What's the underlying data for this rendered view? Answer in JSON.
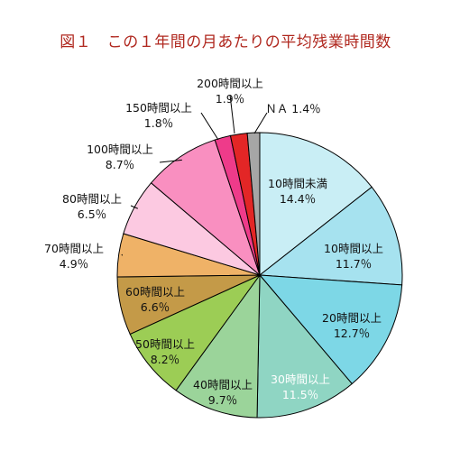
{
  "chart_data": {
    "type": "pie",
    "title": "図１　この１年間の月あたりの平均残業時間数",
    "slices": [
      {
        "label": "10時間未満",
        "value": 14.4,
        "value_text": "14.4％",
        "color": "#c9eef5",
        "text_color": "#111111"
      },
      {
        "label": "10時間以上",
        "value": 11.7,
        "value_text": "11.7％",
        "color": "#a6e2ef",
        "text_color": "#111111"
      },
      {
        "label": "20時間以上",
        "value": 12.7,
        "value_text": "12.7％",
        "color": "#7dd7e6",
        "text_color": "#111111"
      },
      {
        "label": "30時間以上",
        "value": 11.5,
        "value_text": "11.5％",
        "color": "#8fd5c3",
        "text_color": "#ffffff"
      },
      {
        "label": "40時間以上",
        "value": 9.7,
        "value_text": "9.7％",
        "color": "#9bd49a",
        "text_color": "#111111"
      },
      {
        "label": "50時間以上",
        "value": 8.2,
        "value_text": "8.2％",
        "color": "#9ccd55",
        "text_color": "#111111"
      },
      {
        "label": "60時間以上",
        "value": 6.6,
        "value_text": "6.6％",
        "color": "#c49a48",
        "text_color": "#111111"
      },
      {
        "label": "70時間以上",
        "value": 4.9,
        "value_text": "4.9％",
        "color": "#efb267",
        "text_color": "#111111"
      },
      {
        "label": "80時間以上",
        "value": 6.5,
        "value_text": "6.5％",
        "color": "#fcc9e1",
        "text_color": "#111111"
      },
      {
        "label": "100時間以上",
        "value": 8.7,
        "value_text": "8.7％",
        "color": "#f98fc0",
        "text_color": "#111111"
      },
      {
        "label": "150時間以上",
        "value": 1.8,
        "value_text": "1.8％",
        "color": "#ee3b8a",
        "text_color": "#111111"
      },
      {
        "label": "200時間以上",
        "value": 1.9,
        "value_text": "1.9％",
        "color": "#e32626",
        "text_color": "#111111"
      },
      {
        "label": "ＮＡ",
        "value": 1.4,
        "value_text": "1.4％",
        "color": "#a6a6a6",
        "text_color": "#111111"
      }
    ]
  }
}
